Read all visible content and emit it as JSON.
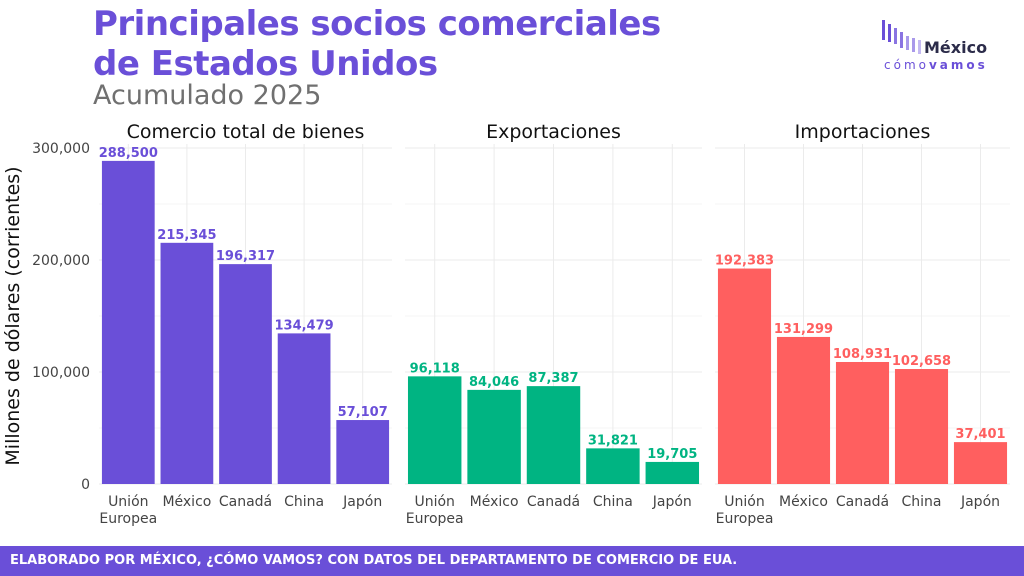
{
  "header": {
    "title": "Principales socios comerciales de Estados Unidos",
    "subtitle": "Acumulado 2025"
  },
  "logo": {
    "top": "México",
    "bottom_light": "cómo",
    "bottom_bold": "vamos"
  },
  "footer": {
    "text": "ELABORADO POR MÉXICO, ¿CÓMO VAMOS? CON DATOS DEL DEPARTAMENTO DE COMERCIO DE EUA."
  },
  "colors": {
    "title": "#6a4fd8",
    "total": "#6a4fd8",
    "exports": "#00b482",
    "imports": "#ff5f5f",
    "grid": "#ebebeb"
  },
  "chart_data": {
    "type": "bar",
    "ylabel": "Millones de dólares (corrientes)",
    "ylim": [
      0,
      300000
    ],
    "yticks": [
      "0",
      "100,000",
      "200,000",
      "300,000"
    ],
    "grid": true,
    "panels": [
      {
        "title": "Comercio total de bienes",
        "categories": [
          "Unión Europea",
          "México",
          "Canadá",
          "China",
          "Japón"
        ],
        "values": [
          288500,
          215345,
          196317,
          134479,
          57107
        ],
        "labels": [
          "288,500",
          "215,345",
          "196,317",
          "134,479",
          "57,107"
        ]
      },
      {
        "title": "Exportaciones",
        "categories": [
          "Unión Europea",
          "México",
          "Canadá",
          "China",
          "Japón"
        ],
        "values": [
          96118,
          84046,
          87387,
          31821,
          19705
        ],
        "labels": [
          "96,118",
          "84,046",
          "87,387",
          "31,821",
          "19,705"
        ]
      },
      {
        "title": "Importaciones",
        "categories": [
          "Unión Europea",
          "México",
          "Canadá",
          "China",
          "Japón"
        ],
        "values": [
          192383,
          131299,
          108931,
          102658,
          37401
        ],
        "labels": [
          "192,383",
          "131,299",
          "108,931",
          "102,658",
          "37,401"
        ]
      }
    ]
  }
}
